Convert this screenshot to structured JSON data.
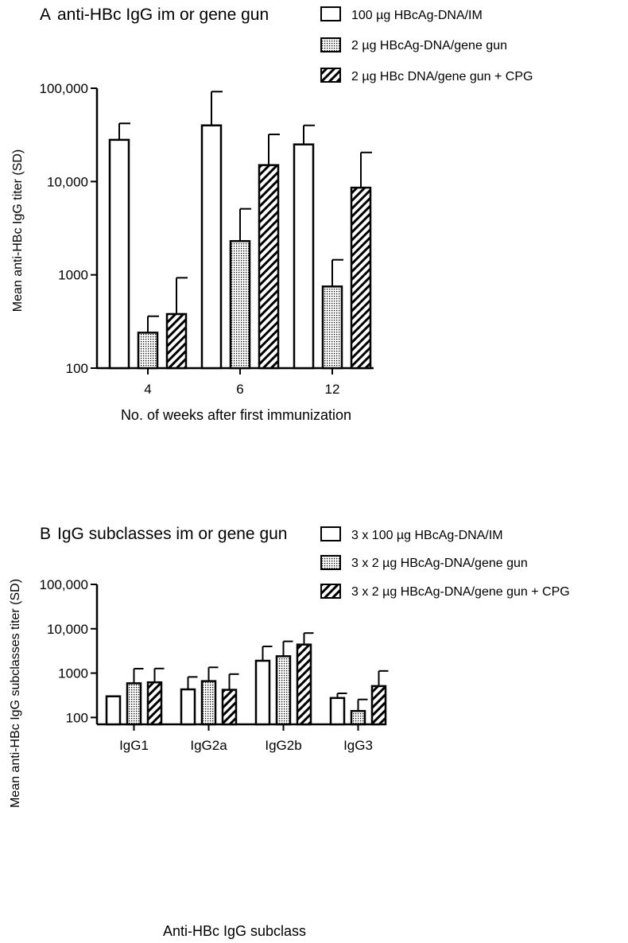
{
  "chart_data": [
    {
      "type": "bar",
      "panel_letter": "A",
      "title": "anti-HBc IgG im or gene gun",
      "xlabel": "No. of weeks after first immunization",
      "ylabel": "Mean anti-HBc IgG titer (SD)",
      "yscale": "log",
      "ylim": [
        100,
        100000
      ],
      "yticks": [
        {
          "value": 100,
          "label": "100"
        },
        {
          "value": 1000,
          "label": "1000"
        },
        {
          "value": 10000,
          "label": "10,000"
        },
        {
          "value": 100000,
          "label": "100,000"
        }
      ],
      "categories": [
        "4",
        "6",
        "12"
      ],
      "legend_position": "top-right",
      "series": [
        {
          "name": "100 µg HBcAg-DNA/IM",
          "pattern": "open",
          "values": [
            28000,
            40000,
            25000
          ],
          "sd_upper": [
            42000,
            92000,
            40000
          ]
        },
        {
          "name": "2 µg HBcAg-DNA/gene gun",
          "pattern": "dotted",
          "values": [
            240,
            2300,
            750
          ],
          "sd_upper": [
            360,
            5100,
            1450
          ]
        },
        {
          "name": "2 µg HBc DNA/gene gun + CPG",
          "pattern": "hatched",
          "values": [
            380,
            15000,
            8600
          ],
          "sd_upper": [
            930,
            32000,
            20500
          ]
        }
      ]
    },
    {
      "type": "bar",
      "panel_letter": "B",
      "title": "IgG subclasses im or gene gun",
      "xlabel": "Anti-HBc IgG subclass",
      "ylabel": "Mean anti-HBc IgG subclasses titer (SD)",
      "yscale": "log",
      "ylim": [
        70,
        100000
      ],
      "yticks": [
        {
          "value": 100,
          "label": "100"
        },
        {
          "value": 1000,
          "label": "1000"
        },
        {
          "value": 10000,
          "label": "10,000"
        },
        {
          "value": 100000,
          "label": "100,000"
        }
      ],
      "categories": [
        "IgG1",
        "IgG2a",
        "IgG2b",
        "IgG3"
      ],
      "legend_position": "top-right",
      "series": [
        {
          "name": "3 x 100 µg HBcAg-DNA/IM",
          "pattern": "open",
          "values": [
            300,
            430,
            1900,
            275
          ],
          "sd_upper": [
            300,
            820,
            4000,
            350
          ]
        },
        {
          "name": "3 x 2 µg HBcAg-DNA/gene gun",
          "pattern": "dotted",
          "values": [
            590,
            660,
            2400,
            140
          ],
          "sd_upper": [
            1260,
            1350,
            5200,
            255
          ]
        },
        {
          "name": "3 x 2 µg HBcAg-DNA/gene gun + CPG",
          "pattern": "hatched",
          "values": [
            620,
            420,
            4400,
            510
          ],
          "sd_upper": [
            1270,
            950,
            8000,
            1120
          ]
        }
      ]
    }
  ]
}
